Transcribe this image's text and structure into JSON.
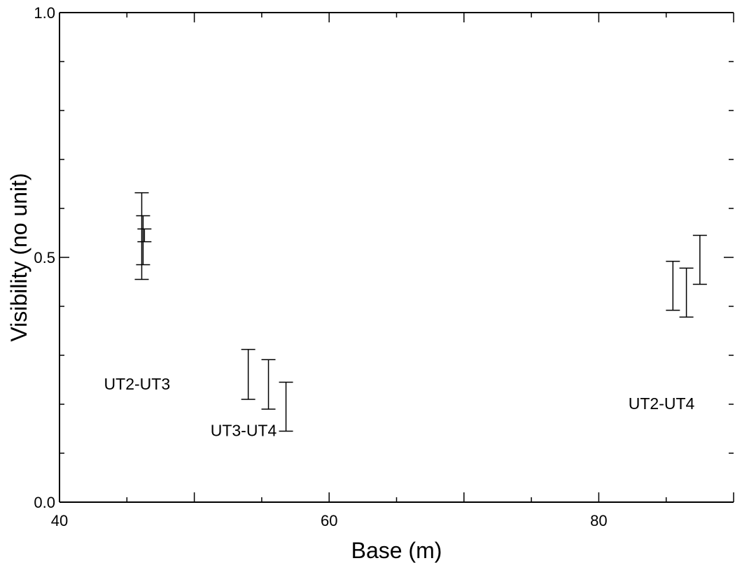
{
  "chart_data": {
    "type": "scatter",
    "title": "",
    "xlabel": "Base (m)",
    "ylabel": "Visibility (no unit)",
    "xlim": [
      40,
      90
    ],
    "ylim": [
      0.0,
      1.0
    ],
    "x_ticks": [
      40,
      60,
      80
    ],
    "x_tick_labels": [
      "40",
      "60",
      "80"
    ],
    "y_ticks": [
      0.0,
      0.5,
      1.0
    ],
    "y_tick_labels": [
      "0.0",
      "0.5",
      "1.0"
    ],
    "grid": false,
    "series": [
      {
        "points": [
          {
            "x": 46.1,
            "low": 0.455,
            "high": 0.632
          },
          {
            "x": 46.2,
            "low": 0.485,
            "high": 0.585
          },
          {
            "x": 46.3,
            "low": 0.532,
            "high": 0.558
          }
        ]
      },
      {
        "points": [
          {
            "x": 54.0,
            "low": 0.21,
            "high": 0.312
          },
          {
            "x": 55.5,
            "low": 0.19,
            "high": 0.291
          },
          {
            "x": 56.8,
            "low": 0.145,
            "high": 0.245
          }
        ]
      },
      {
        "points": [
          {
            "x": 85.5,
            "low": 0.392,
            "high": 0.492
          },
          {
            "x": 86.5,
            "low": 0.378,
            "high": 0.478
          },
          {
            "x": 87.5,
            "low": 0.445,
            "high": 0.545
          }
        ]
      }
    ],
    "annotations": [
      {
        "text": "UT2-UT3",
        "x": 43.3,
        "y": 0.23
      },
      {
        "text": "UT3-UT4",
        "x": 51.2,
        "y": 0.135
      },
      {
        "text": "UT2-UT4",
        "x": 82.2,
        "y": 0.19
      }
    ]
  }
}
